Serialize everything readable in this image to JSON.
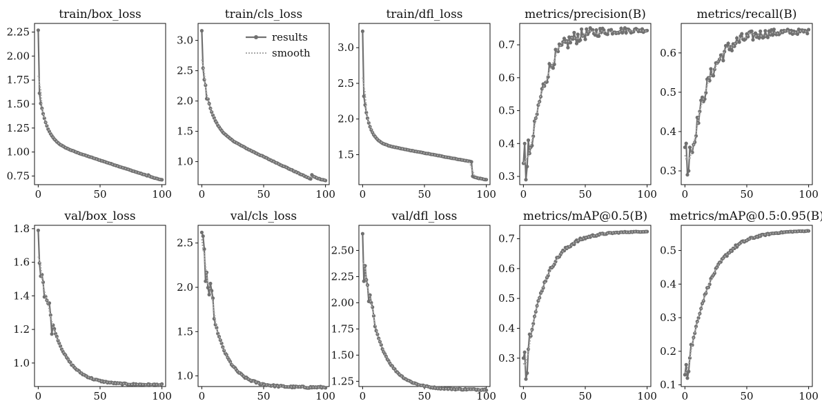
{
  "legend": {
    "results": "results",
    "smooth": "smooth"
  },
  "colors": {
    "results": "#707070",
    "smooth": "#a8a8a8",
    "axes": "#111111"
  },
  "chart_data": [
    {
      "type": "line",
      "title": "train/box_loss",
      "xlim": [
        -3,
        103
      ],
      "ylim": [
        0.66,
        2.34
      ],
      "xticks": [
        0,
        50,
        100
      ],
      "yticks": [
        0.75,
        1.0,
        1.25,
        1.5,
        1.75,
        2.0,
        2.25
      ],
      "ytick_labels": [
        "0.75",
        "1.00",
        "1.25",
        "1.50",
        "1.75",
        "2.00",
        "2.25"
      ],
      "shape": {
        "kind": "decay",
        "start": 2.27,
        "p": 1.6,
        "a": 0.48,
        "tau": 6,
        "b": -0.0042,
        "c": 1.12,
        "step_at": 89,
        "step_to": 0.76,
        "end": 0.71,
        "noise": 0.004,
        "noise_until": 3
      }
    },
    {
      "type": "line",
      "title": "train/cls_loss",
      "xlim": [
        -3,
        103
      ],
      "ylim": [
        0.62,
        3.28
      ],
      "xticks": [
        0,
        50,
        100
      ],
      "yticks": [
        1.0,
        1.5,
        2.0,
        2.5,
        3.0
      ],
      "ytick_labels": [
        "1.0",
        "1.5",
        "2.0",
        "2.5",
        "3.0"
      ],
      "shape": {
        "kind": "decay",
        "start": 3.16,
        "p": 2.47,
        "a": 0.92,
        "tau": 7,
        "b": -0.0096,
        "c": 1.85,
        "step_at": 89,
        "step_to": 0.78,
        "end": 0.69,
        "noise": 0.01,
        "noise_until": 5
      }
    },
    {
      "type": "line",
      "title": "train/dfl_loss",
      "xlim": [
        -3,
        103
      ],
      "ylim": [
        1.08,
        3.34
      ],
      "xticks": [
        0,
        50,
        100
      ],
      "yticks": [
        1.5,
        2.0,
        2.5,
        3.0
      ],
      "ytick_labels": [
        "1.5",
        "2.0",
        "2.5",
        "3.0"
      ],
      "shape": {
        "kind": "decay",
        "start": 3.23,
        "p": 2.3,
        "a": 0.62,
        "tau": 5,
        "b": -0.0032,
        "c": 1.55,
        "step_at": 89,
        "step_to": 1.2,
        "end": 1.15,
        "noise": 0.005,
        "noise_until": 3
      }
    },
    {
      "type": "line",
      "title": "metrics/precision(B)",
      "xlim": [
        -3,
        103
      ],
      "ylim": [
        0.275,
        0.765
      ],
      "xticks": [
        0,
        50,
        100
      ],
      "yticks": [
        0.3,
        0.4,
        0.5,
        0.6,
        0.7
      ],
      "ytick_labels": [
        "0.3",
        "0.4",
        "0.5",
        "0.6",
        "0.7"
      ],
      "shape": {
        "kind": "rise",
        "start": 0.3,
        "first": [
          0.34,
          0.4,
          0.29,
          0.33,
          0.41,
          0.37
        ],
        "top": 0.745,
        "tau": 13,
        "noise": 0.022,
        "noise_from": 6,
        "noise_decay": 45
      }
    },
    {
      "type": "line",
      "title": "metrics/recall(B)",
      "xlim": [
        -3,
        103
      ],
      "ylim": [
        0.265,
        0.675
      ],
      "xticks": [
        0,
        50,
        100
      ],
      "yticks": [
        0.3,
        0.4,
        0.5,
        0.6
      ],
      "ytick_labels": [
        "0.3",
        "0.4",
        "0.5",
        "0.6"
      ],
      "shape": {
        "kind": "rise",
        "start": 0.3,
        "first": [
          0.36,
          0.37,
          0.29,
          0.3,
          0.36,
          0.35
        ],
        "top": 0.655,
        "tau": 15,
        "noise": 0.018,
        "noise_from": 6,
        "noise_decay": 50
      }
    },
    {
      "type": "line",
      "title": "val/box_loss",
      "xlim": [
        -3,
        103
      ],
      "ylim": [
        0.86,
        1.82
      ],
      "xticks": [
        0,
        50,
        100
      ],
      "yticks": [
        1.0,
        1.2,
        1.4,
        1.6,
        1.8
      ],
      "ytick_labels": [
        "1.0",
        "1.2",
        "1.4",
        "1.6",
        "1.8"
      ],
      "shape": {
        "kind": "decay",
        "start": 1.79,
        "p": 1.65,
        "a": 0.78,
        "tau": 14,
        "b": 0,
        "c": 0.885,
        "noise": 0.008,
        "noise_until": 12
      }
    },
    {
      "type": "line",
      "title": "val/cls_loss",
      "xlim": [
        -3,
        103
      ],
      "ylim": [
        0.88,
        2.7
      ],
      "xticks": [
        0,
        50,
        100
      ],
      "yticks": [
        1.0,
        1.5,
        2.0,
        2.5
      ],
      "ytick_labels": [
        "1.0",
        "1.5",
        "2.0",
        "2.5"
      ],
      "shape": {
        "kind": "decay",
        "start": 2.62,
        "p": 2.42,
        "a": 1.55,
        "tau": 13,
        "b": 0,
        "c": 0.955,
        "noise": 0.02,
        "noise_until": 10
      }
    },
    {
      "type": "line",
      "title": "val/dfl_loss",
      "xlim": [
        -3,
        103
      ],
      "ylim": [
        1.2,
        2.74
      ],
      "xticks": [
        0,
        50,
        100
      ],
      "yticks": [
        1.25,
        1.5,
        1.75,
        2.0,
        2.25,
        2.5
      ],
      "ytick_labels": [
        "1.25",
        "1.50",
        "1.75",
        "2.00",
        "2.25",
        "2.50"
      ],
      "shape": {
        "kind": "decay",
        "start": 2.66,
        "p": 2.32,
        "a": 1.15,
        "tau": 14,
        "b": 0,
        "c": 1.245,
        "noise": 0.012,
        "noise_until": 10
      }
    },
    {
      "type": "line",
      "title": "metrics/mAP@0.5(B)",
      "xlim": [
        -3,
        103
      ],
      "ylim": [
        0.205,
        0.745
      ],
      "xticks": [
        0,
        50,
        100
      ],
      "yticks": [
        0.3,
        0.4,
        0.5,
        0.6,
        0.7
      ],
      "ytick_labels": [
        "0.3",
        "0.4",
        "0.5",
        "0.6",
        "0.7"
      ],
      "shape": {
        "kind": "rise",
        "start": 0.22,
        "first": [
          0.3,
          0.32,
          0.23,
          0.25,
          0.33,
          0.38
        ],
        "top": 0.725,
        "tau": 16,
        "noise": 0.006,
        "noise_from": 6,
        "noise_decay": 30
      }
    },
    {
      "type": "line",
      "title": "metrics/mAP@0.5:0.95(B)",
      "xlim": [
        -3,
        103
      ],
      "ylim": [
        0.095,
        0.575
      ],
      "xticks": [
        0,
        50,
        100
      ],
      "yticks": [
        0.1,
        0.2,
        0.3,
        0.4,
        0.5
      ],
      "ytick_labels": [
        "0.1",
        "0.2",
        "0.3",
        "0.4",
        "0.5"
      ],
      "shape": {
        "kind": "rise",
        "start": 0.12,
        "first": [
          0.13,
          0.16,
          0.12,
          0.14,
          0.18,
          0.22
        ],
        "top": 0.56,
        "tau": 18,
        "noise": 0.005,
        "noise_from": 6,
        "noise_decay": 30
      }
    }
  ]
}
